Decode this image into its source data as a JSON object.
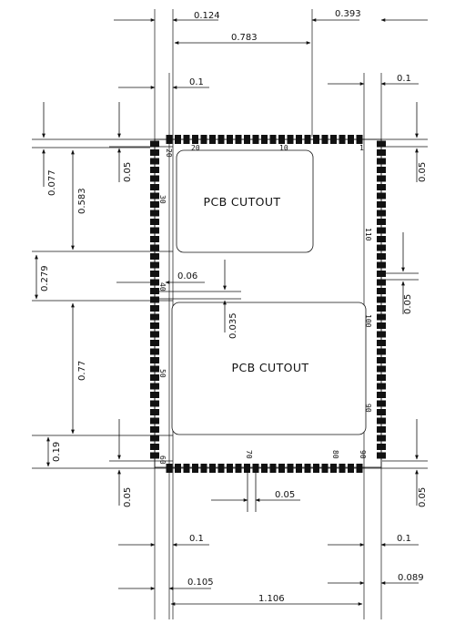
{
  "drawing": {
    "cutouts": [
      {
        "label": "PCB CUTOUT"
      },
      {
        "label": "PCB CUTOUT"
      }
    ],
    "pins": {
      "top_right": "1",
      "top_mid": "10",
      "top_left": "20",
      "corner_top_left": "20",
      "left_30": "30",
      "left_40": "40",
      "left_50": "50",
      "corner_bottom_left": "60",
      "bottom_70": "70",
      "bottom_80": "80",
      "bottom_right": "90",
      "right_90": "90",
      "right_100": "100",
      "right_110": "110"
    },
    "dimensions": {
      "d_0124": "0.124",
      "d_0393": "0.393",
      "d_0783": "0.783",
      "d_01_top_left": "0.1",
      "d_01_top_right": "0.1",
      "d_0077": "0.077",
      "d_005_top_left": "0.05",
      "d_0583": "0.583",
      "d_005_top_right": "0.05",
      "d_0279": "0.279",
      "d_006": "0.06",
      "d_0035": "0.035",
      "d_005_right_mid": "0.05",
      "d_077": "0.77",
      "d_019": "0.19",
      "d_005_bottom_left": "0.05",
      "d_005_bottom_mid": "0.05",
      "d_005_bottom_right": "0.05",
      "d_01_bottom_left": "0.1",
      "d_01_bottom_right": "0.1",
      "d_0105": "0.105",
      "d_0089": "0.089",
      "d_1106": "1.106"
    }
  }
}
